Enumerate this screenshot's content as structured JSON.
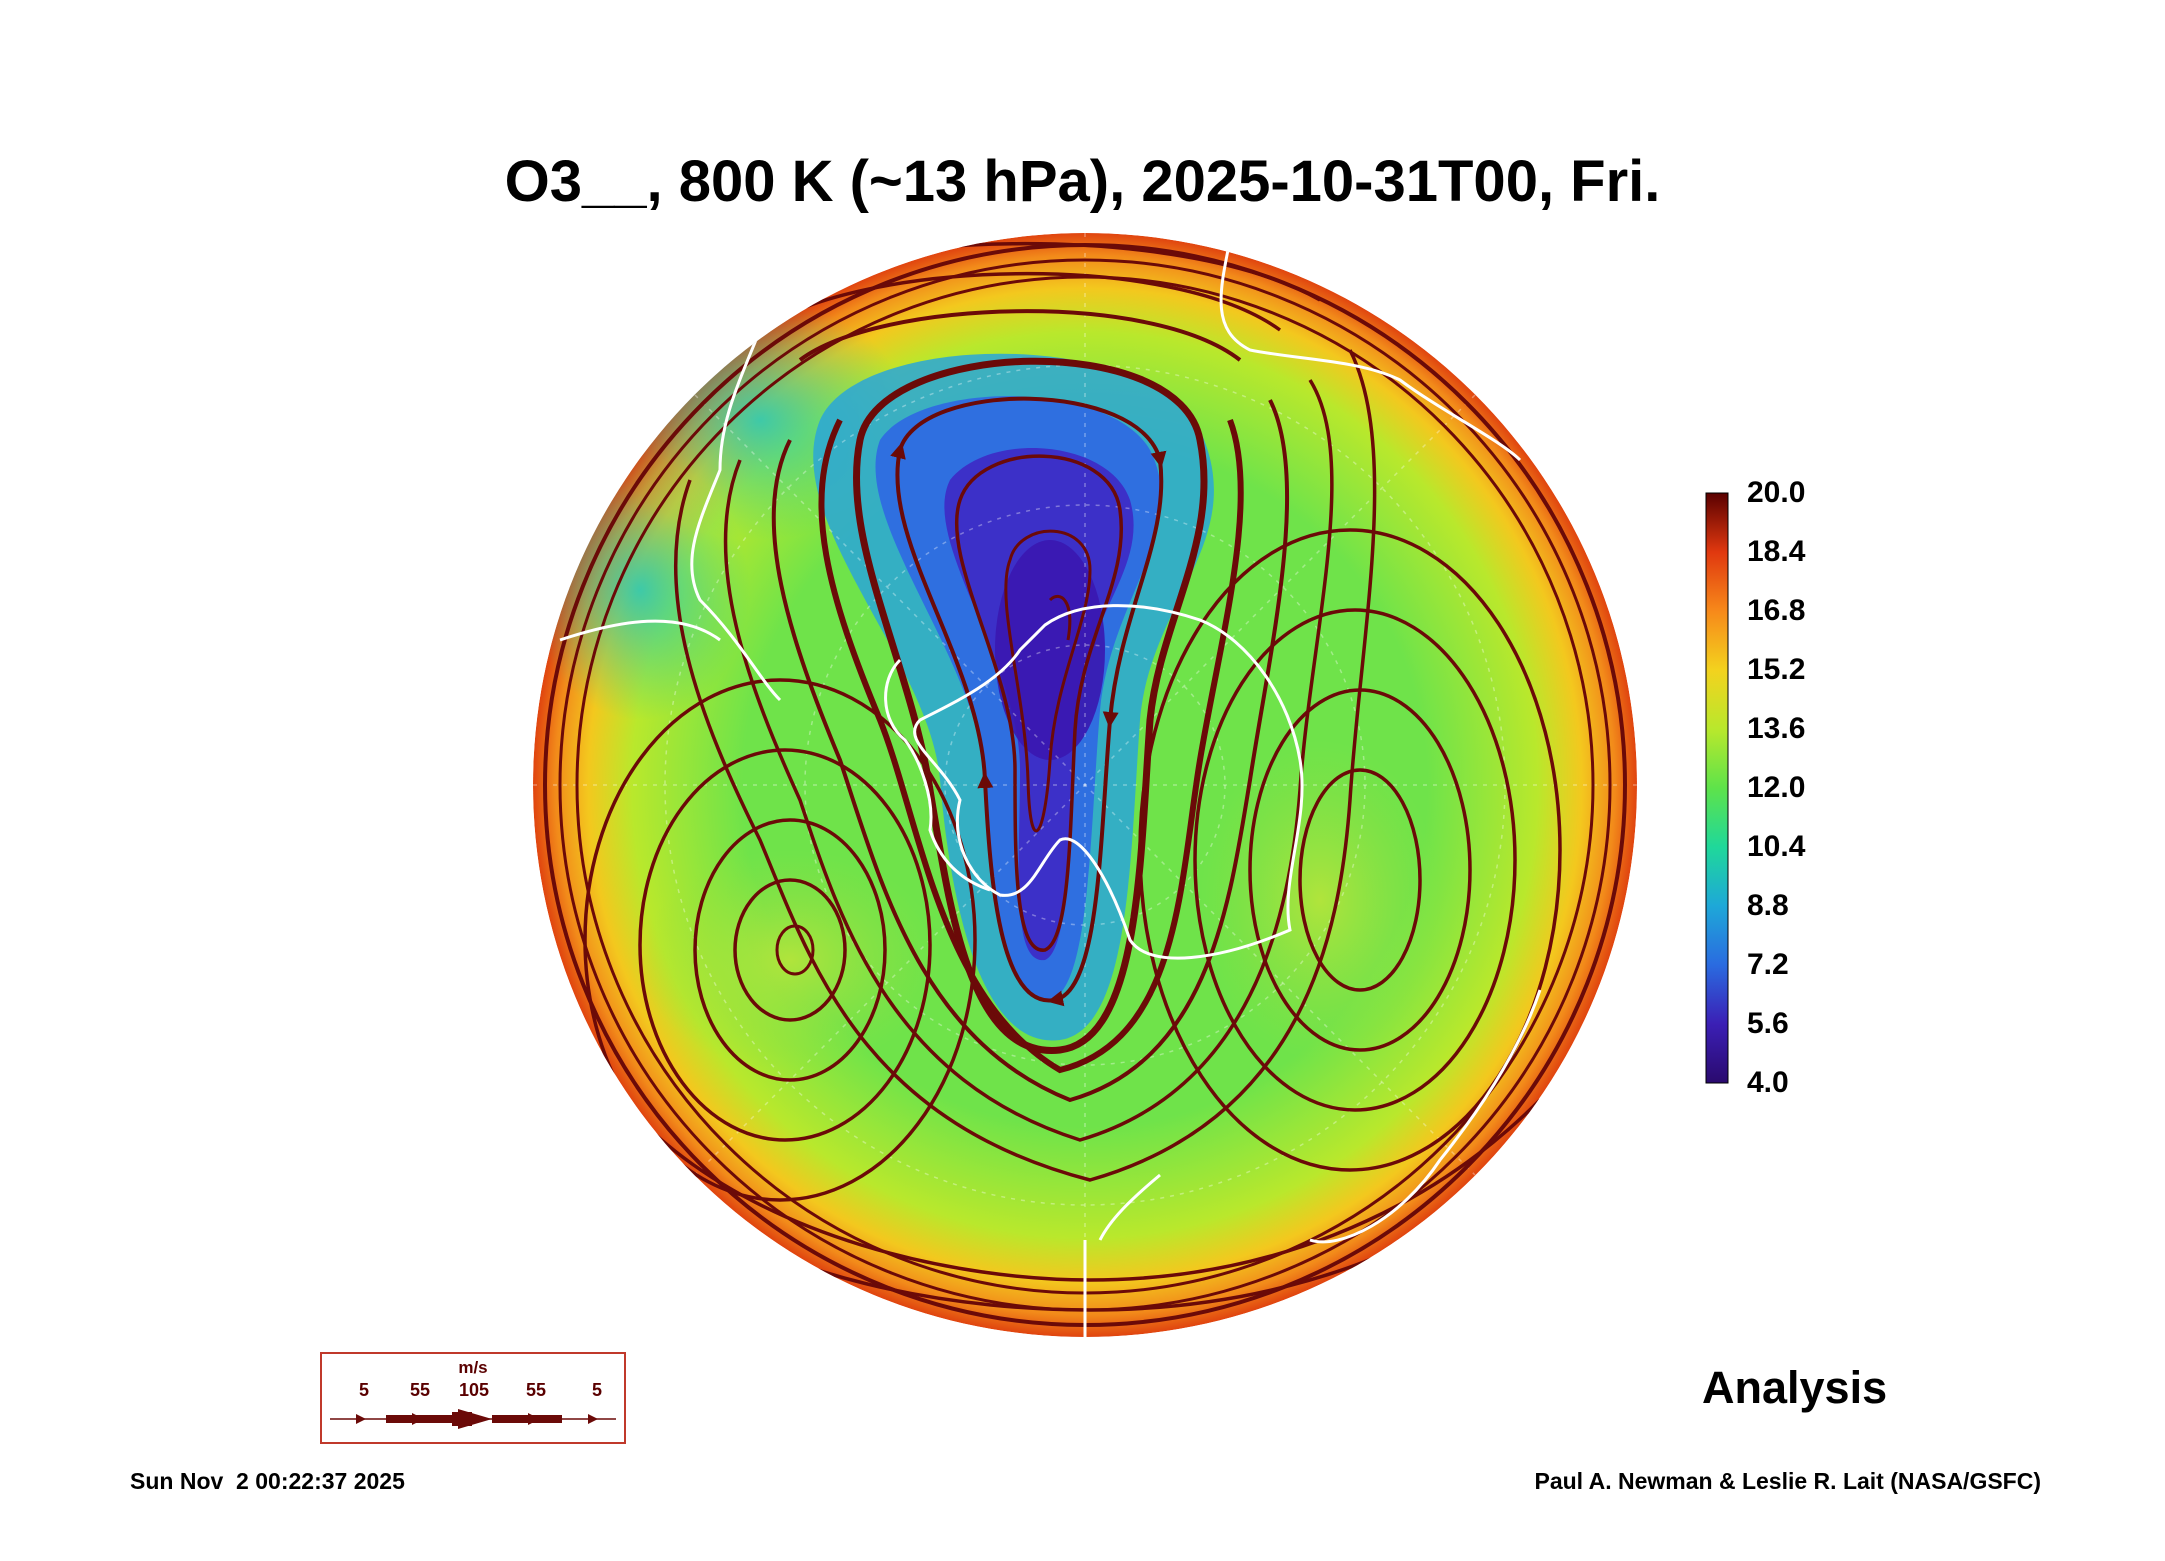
{
  "title": "O3__, 800 K (~13 hPa), 2025-10-31T00, Fri.",
  "colorbar": {
    "labels": [
      "20.0",
      "18.4",
      "16.8",
      "15.2",
      "13.6",
      "12.0",
      "10.4",
      "8.8",
      "7.2",
      "5.6",
      "4.0"
    ],
    "min": 4.0,
    "max": 20.0,
    "colors": [
      "#2a0a6e",
      "#3b1fb5",
      "#2a6be0",
      "#1ea8d8",
      "#1fd89a",
      "#5ee34a",
      "#b9e82c",
      "#f3d21e",
      "#f7891a",
      "#e0380f",
      "#8a0e07",
      "#5a0000"
    ]
  },
  "wind_legend": {
    "unit": "m/s",
    "ticks": [
      "5",
      "55",
      "105",
      "55",
      "5"
    ]
  },
  "label_analysis": "Analysis",
  "footer_left": "Sun Nov  2 00:22:37 2025",
  "footer_right": "Paul A. Newman & Leslie R. Lait (NASA/GSFC)",
  "colors": {
    "streamline": "#6b0a08",
    "coastline": "#ffffff",
    "field_low": "#3a1ab0",
    "field_mid": "#4fe06a",
    "field_high": "#e0420f"
  }
}
